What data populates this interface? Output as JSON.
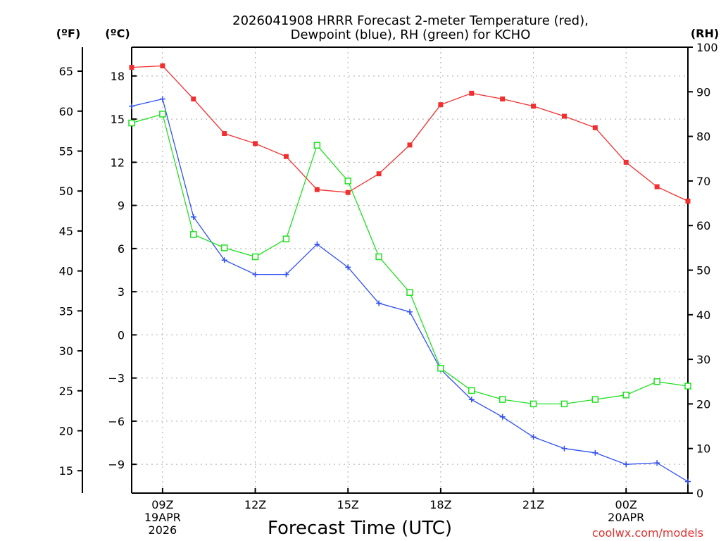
{
  "chart_data": {
    "type": "line",
    "title_line1": "2026041908 HRRR Forecast 2-meter Temperature (red),",
    "title_line2": "Dewpoint (blue), RH (green) for KCHO",
    "xlabel": "Forecast Time (UTC)",
    "credit": "coolwx.com/models",
    "units": {
      "fahrenheit": "(ºF)",
      "celsius": "(ºC)",
      "rh": "(RH)"
    },
    "x_hours": [
      8,
      9,
      10,
      11,
      12,
      13,
      14,
      15,
      16,
      17,
      18,
      19,
      20,
      21,
      22,
      23,
      24,
      25,
      26
    ],
    "xlim": [
      8,
      26
    ],
    "x_ticks": [
      {
        "hour": 9,
        "lines": [
          "09Z",
          "19APR",
          "2026"
        ]
      },
      {
        "hour": 12,
        "lines": [
          "12Z"
        ]
      },
      {
        "hour": 15,
        "lines": [
          "15Z"
        ]
      },
      {
        "hour": 18,
        "lines": [
          "18Z"
        ]
      },
      {
        "hour": 21,
        "lines": [
          "21Z"
        ]
      },
      {
        "hour": 24,
        "lines": [
          "00Z",
          "20APR"
        ]
      }
    ],
    "celsius_axis": {
      "ylim": [
        -11.0,
        20.0
      ],
      "ticks": [
        "18",
        "15",
        "12",
        "9",
        "6",
        "3",
        "0",
        "−3",
        "−6",
        "−9"
      ],
      "tick_values": [
        18,
        15,
        12,
        9,
        6,
        3,
        0,
        -3,
        -6,
        -9
      ]
    },
    "fahrenheit_axis": {
      "ticks": [
        "65",
        "60",
        "55",
        "50",
        "45",
        "40",
        "35",
        "30",
        "25",
        "20",
        "15"
      ],
      "tick_values": [
        65,
        60,
        55,
        50,
        45,
        40,
        35,
        30,
        25,
        20,
        15
      ]
    },
    "rh_axis": {
      "ylim": [
        0,
        100
      ],
      "ticks": [
        "100",
        "90",
        "80",
        "70",
        "60",
        "50",
        "40",
        "30",
        "20",
        "10",
        "0"
      ],
      "tick_values": [
        100,
        90,
        80,
        70,
        60,
        50,
        40,
        30,
        20,
        10,
        0
      ]
    },
    "series": [
      {
        "name": "2-meter Temperature",
        "color": "#f03030",
        "marker": "filled-square",
        "axis": "celsius",
        "values": [
          18.6,
          18.7,
          16.4,
          14.0,
          13.3,
          12.4,
          10.1,
          9.9,
          11.2,
          13.2,
          16.0,
          16.8,
          16.4,
          15.9,
          15.2,
          14.4,
          12.0,
          10.3,
          9.3
        ]
      },
      {
        "name": "Dewpoint",
        "color": "#3050f0",
        "marker": "plus",
        "axis": "celsius",
        "values": [
          15.9,
          16.4,
          8.2,
          5.2,
          4.2,
          4.2,
          6.3,
          4.7,
          2.2,
          1.6,
          -2.4,
          -4.5,
          -5.7,
          -7.1,
          -7.9,
          -8.2,
          -9.0,
          -8.9,
          -10.2
        ]
      },
      {
        "name": "RH",
        "color": "#20e020",
        "marker": "open-square",
        "axis": "rh",
        "values": [
          83,
          85,
          58,
          55,
          53,
          57,
          78,
          70,
          53,
          45,
          28,
          23,
          21,
          20,
          20,
          21,
          22,
          25,
          24
        ]
      }
    ]
  }
}
